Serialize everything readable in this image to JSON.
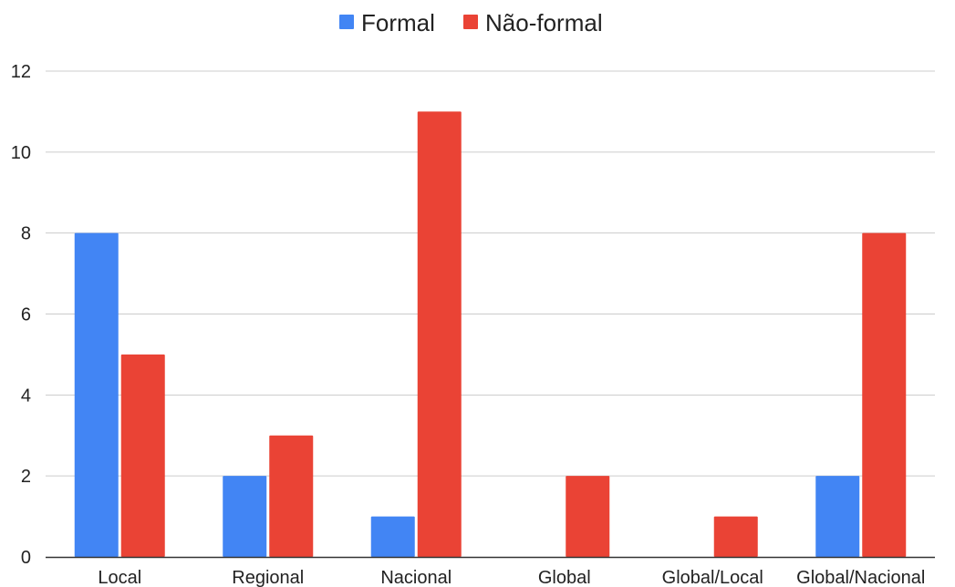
{
  "chart_data": {
    "type": "bar",
    "categories": [
      "Local",
      "Regional",
      "Nacional",
      "Global",
      "Global/Local",
      "Global/Nacional"
    ],
    "series": [
      {
        "name": "Formal",
        "color": "#4285F4",
        "values": [
          8,
          2,
          1,
          0,
          0,
          2
        ]
      },
      {
        "name": "Não-formal",
        "color": "#EA4335",
        "values": [
          5,
          3,
          11,
          2,
          1,
          8
        ]
      }
    ],
    "title": "",
    "xlabel": "",
    "ylabel": "",
    "ylim": [
      0,
      12
    ],
    "yticks": [
      "0",
      "2",
      "4",
      "6",
      "8",
      "10",
      "12"
    ],
    "grid": true,
    "legend_position": "top-center",
    "gridline_color": "#cccccc",
    "axis_color": "#333333"
  }
}
